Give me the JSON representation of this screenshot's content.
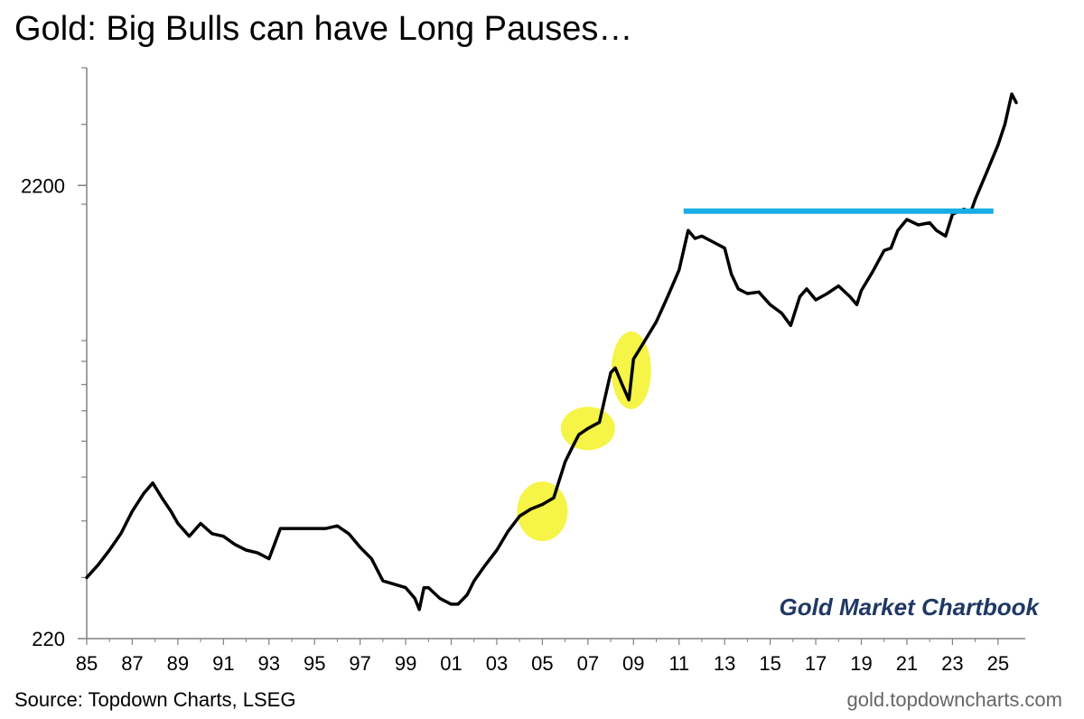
{
  "title": "Gold: Big Bulls can have Long Pauses…",
  "watermark": "Gold Market Chartbook",
  "footer": {
    "source": "Source: Topdown Charts, LSEG",
    "site": "gold.topdowncharts.com"
  },
  "colors": {
    "line": "#000000",
    "resistance": "#17aee6",
    "highlight": "#f2f000"
  },
  "chart_data": {
    "type": "line",
    "title": "Gold: Big Bulls can have Long Pauses…",
    "xlabel": "",
    "ylabel": "",
    "yscale": "log",
    "ylim": [
      220,
      4000
    ],
    "xlim": [
      1985,
      2025.8
    ],
    "y_tick_labels": [
      "2200",
      "220"
    ],
    "y_tick_values": [
      2200,
      220
    ],
    "x_tick_labels": [
      "85",
      "87",
      "89",
      "91",
      "93",
      "95",
      "97",
      "99",
      "01",
      "03",
      "05",
      "07",
      "09",
      "11",
      "13",
      "15",
      "17",
      "19",
      "21",
      "23",
      "25"
    ],
    "x_tick_values": [
      1985,
      1987,
      1989,
      1991,
      1993,
      1995,
      1997,
      1999,
      2001,
      2003,
      2005,
      2007,
      2009,
      2011,
      2013,
      2015,
      2017,
      2019,
      2021,
      2023,
      2025
    ],
    "series": [
      {
        "x": [
          1985.0,
          1985.5,
          1986.0,
          1986.5,
          1987.0,
          1987.5,
          1987.9,
          1988.3,
          1988.7,
          1989.0,
          1989.5,
          1990.0,
          1990.5,
          1991.0,
          1991.5,
          1992.0,
          1992.5,
          1993.0,
          1993.5,
          1994.0,
          1994.5,
          1995.0,
          1995.5,
          1996.0,
          1996.5,
          1997.0,
          1997.5,
          1998.0,
          1998.5,
          1999.0,
          1999.4,
          1999.6,
          1999.8,
          2000.0,
          2000.5,
          2001.0,
          2001.3,
          2001.7,
          2002.0,
          2002.5,
          2003.0,
          2003.5,
          2004.0,
          2004.5,
          2005.0,
          2005.5,
          2006.0,
          2006.3,
          2006.6,
          2007.0,
          2007.5,
          2008.0,
          2008.2,
          2008.5,
          2008.8,
          2009.0,
          2009.5,
          2010.0,
          2010.5,
          2011.0,
          2011.4,
          2011.7,
          2012.0,
          2012.5,
          2013.0,
          2013.3,
          2013.6,
          2014.0,
          2014.5,
          2015.0,
          2015.5,
          2015.9,
          2016.3,
          2016.6,
          2017.0,
          2017.5,
          2018.0,
          2018.5,
          2018.8,
          2019.0,
          2019.5,
          2020.0,
          2020.3,
          2020.6,
          2021.0,
          2021.5,
          2022.0,
          2022.3,
          2022.7,
          2023.0,
          2023.5,
          2023.8,
          2024.0,
          2024.5,
          2025.0,
          2025.3,
          2025.6,
          2025.8
        ],
        "y": [
          300,
          320,
          345,
          375,
          420,
          460,
          485,
          450,
          420,
          395,
          370,
          395,
          375,
          370,
          355,
          345,
          340,
          330,
          385,
          385,
          385,
          385,
          385,
          390,
          375,
          350,
          330,
          295,
          290,
          285,
          270,
          255,
          285,
          285,
          270,
          262,
          262,
          275,
          295,
          320,
          345,
          380,
          410,
          425,
          435,
          450,
          540,
          580,
          620,
          640,
          660,
          850,
          870,
          800,
          740,
          910,
          1000,
          1100,
          1250,
          1430,
          1750,
          1680,
          1700,
          1650,
          1600,
          1400,
          1300,
          1270,
          1280,
          1200,
          1150,
          1080,
          1250,
          1300,
          1230,
          1270,
          1320,
          1250,
          1200,
          1290,
          1420,
          1580,
          1600,
          1750,
          1850,
          1800,
          1820,
          1750,
          1700,
          1900,
          1950,
          1920,
          2050,
          2350,
          2700,
          3000,
          3500,
          3350
        ]
      }
    ],
    "annotations": [
      {
        "type": "hline",
        "label": "",
        "y": 1930,
        "x_start": 2011.2,
        "x_end": 2024.8
      },
      {
        "type": "highlight",
        "label": "",
        "x": 2005.0,
        "y": 420
      },
      {
        "type": "highlight",
        "label": "",
        "x": 2007.0,
        "y": 640
      },
      {
        "type": "highlight",
        "label": "",
        "x": 2008.9,
        "y": 860
      }
    ]
  }
}
